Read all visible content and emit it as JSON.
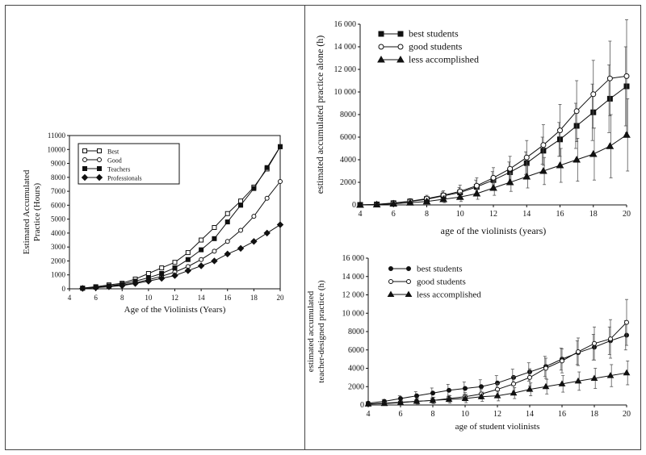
{
  "chart_data": [
    {
      "type": "line",
      "xlabel": "Age of the Violinists (Years)",
      "ylabel": "Estimated Accumulated Practice (Hours)",
      "xlim": [
        4,
        20
      ],
      "ylim": [
        0,
        11000
      ],
      "xticks": [
        "4",
        "6",
        "8",
        "10",
        "12",
        "14",
        "16",
        "18",
        "20"
      ],
      "yticks": [
        "0",
        "1000",
        "2000",
        "3000",
        "4000",
        "5000",
        "6000",
        "7000",
        "8000",
        "9000",
        "10000",
        "11000"
      ],
      "legend_position": "top-left",
      "x": [
        5,
        6,
        7,
        8,
        9,
        10,
        11,
        12,
        13,
        14,
        15,
        16,
        17,
        18,
        19,
        20
      ],
      "series": [
        {
          "name": "Best",
          "marker": "open-square",
          "values": [
            50,
            150,
            280,
            400,
            700,
            1100,
            1500,
            1900,
            2600,
            3500,
            4400,
            5400,
            6300,
            7300,
            8600,
            10200
          ]
        },
        {
          "name": "Good",
          "marker": "open-circle",
          "values": [
            40,
            100,
            180,
            270,
            430,
            650,
            900,
            1200,
            1600,
            2100,
            2700,
            3400,
            4200,
            5200,
            6500,
            7700
          ]
        },
        {
          "name": "Teachers",
          "marker": "filled-square",
          "values": [
            40,
            120,
            200,
            330,
            550,
            800,
            1100,
            1500,
            2100,
            2800,
            3600,
            4800,
            6000,
            7200,
            8700,
            10200
          ]
        },
        {
          "name": "Professionals",
          "marker": "filled-diamond",
          "values": [
            30,
            80,
            150,
            230,
            380,
            550,
            750,
            950,
            1300,
            1650,
            2000,
            2500,
            2900,
            3400,
            4000,
            4600
          ]
        }
      ]
    },
    {
      "type": "line",
      "xlabel": "age of the violinists (years)",
      "ylabel": "estimated accumulated practice alone (h)",
      "xlim": [
        4,
        20
      ],
      "ylim": [
        0,
        16000
      ],
      "xticks": [
        "4",
        "6",
        "8",
        "10",
        "12",
        "14",
        "16",
        "18",
        "20"
      ],
      "yticks": [
        "0",
        "2000",
        "4000",
        "6000",
        "8000",
        "10 000",
        "12 000",
        "14 000",
        "16 000"
      ],
      "legend_position": "top-left",
      "x": [
        4,
        5,
        6,
        7,
        8,
        9,
        10,
        11,
        12,
        13,
        14,
        15,
        16,
        17,
        18,
        19,
        20
      ],
      "series": [
        {
          "name": "best students",
          "marker": "filled-square",
          "values": [
            0,
            40,
            150,
            300,
            500,
            800,
            1100,
            1600,
            2200,
            2900,
            3700,
            4800,
            5800,
            7000,
            8200,
            9400,
            10500
          ],
          "errors": [
            0,
            30,
            100,
            200,
            250,
            350,
            450,
            600,
            750,
            900,
            1000,
            1200,
            1500,
            2000,
            2500,
            3000,
            3500
          ]
        },
        {
          "name": "good students",
          "marker": "open-circle",
          "values": [
            0,
            50,
            170,
            330,
            550,
            850,
            1200,
            1700,
            2400,
            3200,
            4200,
            5300,
            6600,
            8300,
            9800,
            11200,
            11400
          ],
          "errors": [
            0,
            40,
            120,
            220,
            300,
            400,
            550,
            700,
            900,
            1100,
            1500,
            1800,
            2300,
            2700,
            3000,
            3300,
            5000
          ]
        },
        {
          "name": "less accomplished",
          "marker": "filled-triangle",
          "values": [
            0,
            30,
            100,
            200,
            300,
            500,
            700,
            1000,
            1500,
            2000,
            2500,
            3000,
            3500,
            4000,
            4500,
            5200,
            6200
          ],
          "errors": [
            0,
            30,
            80,
            150,
            200,
            300,
            400,
            500,
            650,
            800,
            1000,
            1200,
            1500,
            1900,
            2300,
            2800,
            3200
          ]
        }
      ]
    },
    {
      "type": "line",
      "xlabel": "age of student violinists",
      "ylabel": "estimated accumulated teacher-designed practice (h)",
      "ylabel_lines": [
        "estimated accumulated",
        "teacher-designed practice (h)"
      ],
      "xlim": [
        4,
        20
      ],
      "ylim": [
        0,
        16000
      ],
      "xticks": [
        "4",
        "6",
        "8",
        "10",
        "12",
        "14",
        "16",
        "18",
        "20"
      ],
      "yticks": [
        "0",
        "2000",
        "4000",
        "6000",
        "8000",
        "10 000",
        "12 000",
        "14 000",
        "16 000"
      ],
      "legend_position": "top-left",
      "x": [
        4,
        5,
        6,
        7,
        8,
        9,
        10,
        11,
        12,
        13,
        14,
        15,
        16,
        17,
        18,
        19,
        20
      ],
      "series": [
        {
          "name": "best students",
          "marker": "filled-circle",
          "values": [
            200,
            400,
            700,
            1000,
            1300,
            1600,
            1800,
            2000,
            2400,
            3000,
            3600,
            4200,
            5000,
            5700,
            6300,
            7000,
            7600
          ],
          "errors": [
            150,
            200,
            300,
            450,
            550,
            650,
            700,
            750,
            800,
            900,
            1000,
            1100,
            1200,
            1300,
            1400,
            1500,
            1600
          ]
        },
        {
          "name": "good students",
          "marker": "open-circle",
          "values": [
            100,
            200,
            300,
            400,
            500,
            700,
            900,
            1200,
            1700,
            2300,
            3000,
            4000,
            4800,
            5800,
            6700,
            7200,
            9000
          ],
          "errors": [
            80,
            120,
            200,
            250,
            300,
            350,
            450,
            550,
            650,
            800,
            950,
            1100,
            1300,
            1500,
            1800,
            2100,
            2500
          ]
        },
        {
          "name": "less accomplished",
          "marker": "filled-triangle",
          "values": [
            100,
            150,
            250,
            400,
            500,
            600,
            700,
            900,
            1000,
            1300,
            1700,
            2000,
            2300,
            2600,
            2900,
            3200,
            3500
          ],
          "errors": [
            80,
            120,
            200,
            300,
            350,
            400,
            450,
            500,
            550,
            600,
            700,
            800,
            900,
            1000,
            1100,
            1200,
            1300
          ]
        }
      ]
    }
  ]
}
